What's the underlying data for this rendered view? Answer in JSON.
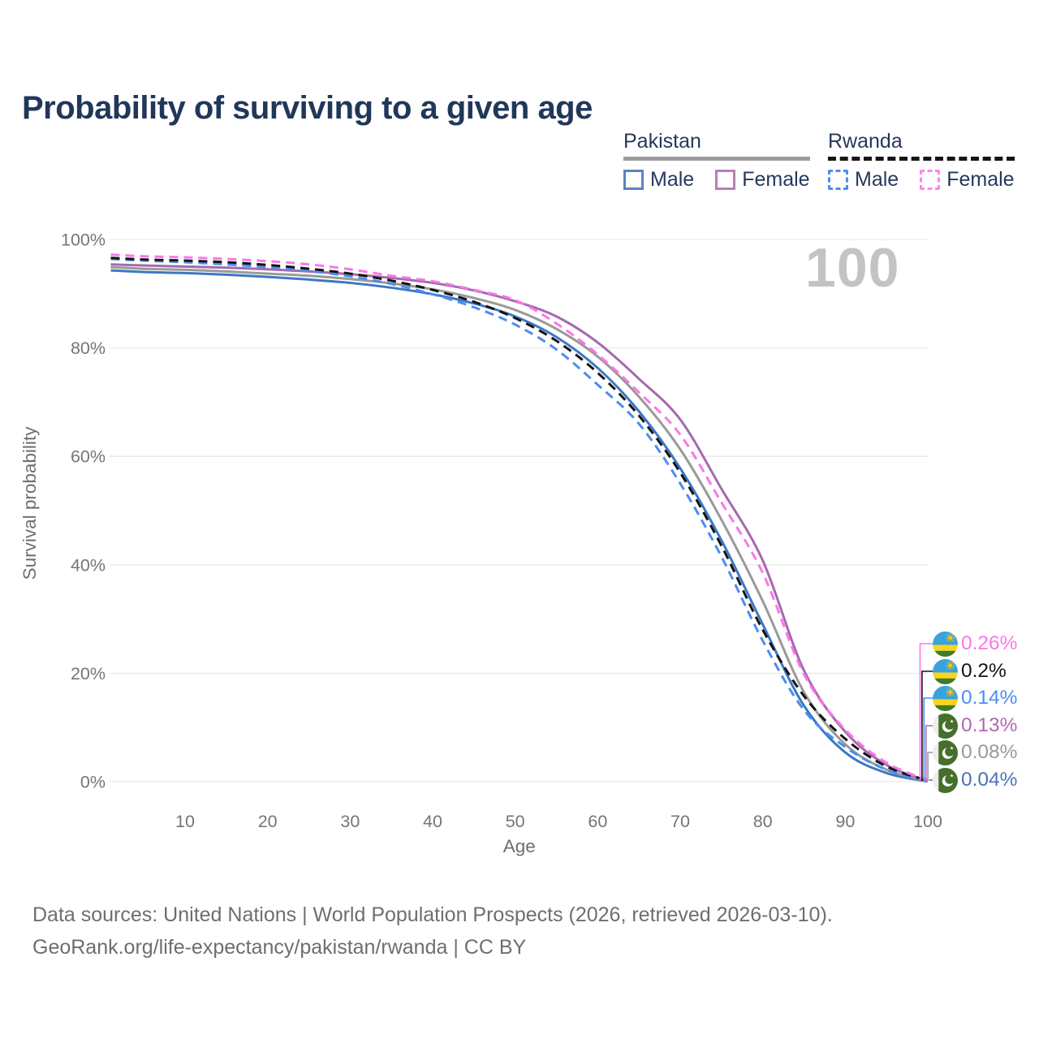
{
  "title": "Probability of surviving to a given age",
  "watermark": "100",
  "legend": {
    "groups": [
      {
        "country": "Pakistan",
        "line_style": "solid",
        "line_color": "#9c9c9c",
        "items": [
          {
            "label": "Male",
            "color": "#5b83c0"
          },
          {
            "label": "Female",
            "color": "#b77fb8"
          }
        ]
      },
      {
        "country": "Rwanda",
        "line_style": "dashed",
        "line_color": "#161616",
        "items": [
          {
            "label": "Male",
            "color": "#4b8df0"
          },
          {
            "label": "Female",
            "color": "#ff85ea"
          }
        ]
      }
    ]
  },
  "chart_data": {
    "type": "line",
    "title": "Probability of surviving to a given age",
    "xlabel": "Age",
    "ylabel": "Survival probability",
    "xlim": [
      1,
      100
    ],
    "ylim": [
      0,
      100
    ],
    "grid": "horizontal-only",
    "legend_position": "top-right",
    "xticks": [
      10,
      20,
      30,
      40,
      50,
      60,
      70,
      80,
      90,
      100
    ],
    "yticks": [
      {
        "value": 0,
        "label": "0%"
      },
      {
        "value": 20,
        "label": "20%"
      },
      {
        "value": 40,
        "label": "40%"
      },
      {
        "value": 60,
        "label": "60%"
      },
      {
        "value": 80,
        "label": "80%"
      },
      {
        "value": 100,
        "label": "100%"
      }
    ],
    "x": [
      1,
      5,
      10,
      15,
      20,
      25,
      30,
      35,
      40,
      45,
      50,
      55,
      60,
      65,
      70,
      75,
      80,
      85,
      90,
      95,
      100
    ],
    "series": [
      {
        "name": "Pakistan Male",
        "color": "#3d77c4",
        "dash": "solid",
        "values": [
          94.3,
          94.0,
          93.8,
          93.5,
          93.1,
          92.6,
          92.0,
          91.1,
          89.9,
          88.2,
          85.8,
          82.0,
          76.3,
          68.3,
          57.8,
          44.5,
          29.0,
          14.0,
          5.4,
          1.6,
          0.04
        ]
      },
      {
        "name": "Pakistan Both sexes",
        "color": "#9a9a9a",
        "dash": "solid",
        "values": [
          94.9,
          94.6,
          94.4,
          94.1,
          93.7,
          93.3,
          92.7,
          91.9,
          90.8,
          89.2,
          87.0,
          83.5,
          78.4,
          71.0,
          61.3,
          48.3,
          33.3,
          16.5,
          6.9,
          2.2,
          0.08
        ]
      },
      {
        "name": "Pakistan Female",
        "color": "#a569ad",
        "dash": "solid",
        "values": [
          95.4,
          95.2,
          95.0,
          94.8,
          94.5,
          94.1,
          93.6,
          92.9,
          92.0,
          90.6,
          88.6,
          85.8,
          81.0,
          74.3,
          66.8,
          54.0,
          40.8,
          20.5,
          9.2,
          3.1,
          0.13
        ]
      },
      {
        "name": "Rwanda Male",
        "color": "#4b8df0",
        "dash": "dashed",
        "values": [
          96.4,
          96.1,
          95.8,
          95.4,
          94.9,
          94.2,
          93.2,
          91.8,
          89.9,
          87.5,
          84.3,
          79.7,
          73.2,
          66.0,
          55.0,
          41.5,
          26.0,
          13.2,
          6.4,
          2.2,
          0.14
        ]
      },
      {
        "name": "Rwanda Both sexes",
        "color": "#141414",
        "dash": "dashed",
        "values": [
          96.6,
          96.3,
          96.1,
          95.8,
          95.3,
          94.6,
          93.7,
          92.4,
          90.7,
          88.5,
          85.5,
          81.3,
          75.4,
          67.5,
          57.0,
          43.5,
          28.0,
          15.8,
          7.9,
          2.8,
          0.2
        ]
      },
      {
        "name": "Rwanda Female",
        "color": "#fc76e8",
        "dash": "dashed",
        "values": [
          97.2,
          96.9,
          96.7,
          96.4,
          96.0,
          95.4,
          94.5,
          93.3,
          92.3,
          90.7,
          88.8,
          84.5,
          78.8,
          71.8,
          64.0,
          51.5,
          38.5,
          19.8,
          9.6,
          3.5,
          0.26
        ]
      }
    ],
    "end_labels": [
      {
        "text": "0.26%",
        "color": "#fc76e8",
        "flag": "rwanda",
        "series": "Rwanda Female"
      },
      {
        "text": "0.2%",
        "color": "#141414",
        "flag": "rwanda",
        "series": "Rwanda Both sexes"
      },
      {
        "text": "0.14%",
        "color": "#4b8df0",
        "flag": "rwanda",
        "series": "Rwanda Male"
      },
      {
        "text": "0.13%",
        "color": "#b266b2",
        "flag": "pakistan",
        "series": "Pakistan Female"
      },
      {
        "text": "0.08%",
        "color": "#9a9a9a",
        "flag": "pakistan",
        "series": "Pakistan Both sexes"
      },
      {
        "text": "0.04%",
        "color": "#4a74b9",
        "flag": "pakistan",
        "series": "Pakistan Male"
      }
    ]
  },
  "footer": {
    "line1": "Data sources: United Nations | World Population Prospects (2026, retrieved 2026-03-10).",
    "line2": "GeoRank.org/life-expectancy/pakistan/rwanda | CC BY"
  }
}
